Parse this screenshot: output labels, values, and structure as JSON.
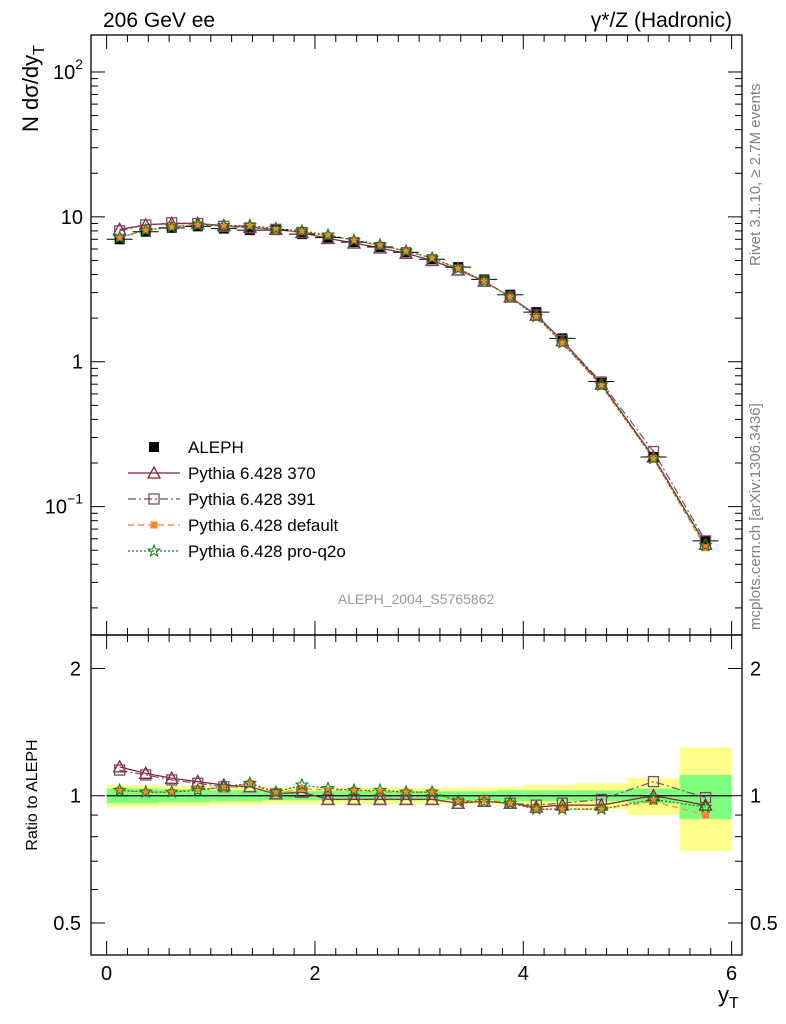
{
  "header": {
    "left_title": "206 GeV ee",
    "right_title": "γ*/Z (Hadronic)"
  },
  "side_labels": {
    "rivet": "Rivet 3.1.10, ≥ 2.7M events",
    "mcplots": "mcplots.cern.ch [arXiv:1306.3436]"
  },
  "watermark": "ALEPH_2004_S5765862",
  "colors": {
    "data": "#000000",
    "p370": "#8b1a2e",
    "p391": "#7a4a6a",
    "pdefault": "#ff8533",
    "pq2o": "#1a7a1a",
    "band_inner": "#7fff7f",
    "band_outer": "#ffff8a"
  },
  "chart_data": [
    {
      "type": "scatter",
      "panel": "main",
      "ylabel": "N dσ/dy",
      "ylabel_sub": "T",
      "yscale": "log",
      "ylim": [
        0.013,
        180
      ],
      "xlim": [
        -0.15,
        6.1
      ],
      "yticks": [
        {
          "value": 0.1,
          "base": "10",
          "exp": "−1"
        },
        {
          "value": 1,
          "base": "1",
          "exp": ""
        },
        {
          "value": 10,
          "base": "10",
          "exp": ""
        },
        {
          "value": 100,
          "base": "10",
          "exp": "2"
        }
      ],
      "legend_position": "left, middle",
      "x": [
        0.125,
        0.375,
        0.625,
        0.875,
        1.125,
        1.375,
        1.625,
        1.875,
        2.125,
        2.375,
        2.625,
        2.875,
        3.125,
        3.375,
        3.625,
        3.875,
        4.125,
        4.375,
        4.75,
        5.25,
        5.75
      ],
      "series": [
        {
          "name": "ALEPH",
          "key": "data",
          "values": [
            7.0,
            7.9,
            8.4,
            8.6,
            8.3,
            8.1,
            8.1,
            7.6,
            7.2,
            6.7,
            6.2,
            5.7,
            5.1,
            4.5,
            3.7,
            2.9,
            2.2,
            1.45,
            0.73,
            0.22,
            0.058
          ]
        },
        {
          "name": "Pythia 6.428 370",
          "key": "p370",
          "values": [
            8.2,
            8.8,
            9.0,
            9.0,
            8.7,
            8.5,
            8.2,
            7.8,
            7.1,
            6.6,
            6.1,
            5.6,
            5.0,
            4.3,
            3.6,
            2.8,
            2.1,
            1.4,
            0.7,
            0.22,
            0.055
          ]
        },
        {
          "name": "Pythia 6.428 391",
          "key": "p391",
          "values": [
            8.0,
            8.8,
            9.1,
            9.0,
            8.6,
            8.4,
            8.2,
            7.8,
            7.1,
            6.6,
            6.1,
            5.6,
            5.0,
            4.3,
            3.6,
            2.8,
            2.1,
            1.4,
            0.72,
            0.24,
            0.058
          ]
        },
        {
          "name": "Pythia 6.428 default",
          "key": "pdefault",
          "values": [
            7.2,
            8.1,
            8.6,
            8.9,
            8.6,
            8.7,
            8.1,
            7.9,
            7.4,
            6.9,
            6.3,
            5.8,
            5.2,
            4.4,
            3.6,
            2.8,
            2.05,
            1.35,
            0.68,
            0.215,
            0.052
          ]
        },
        {
          "name": "Pythia 6.428 pro-q2o",
          "key": "pq2o",
          "values": [
            7.2,
            8.1,
            8.5,
            8.8,
            8.7,
            8.7,
            8.3,
            8.0,
            7.5,
            6.9,
            6.4,
            5.8,
            5.2,
            4.4,
            3.6,
            2.8,
            2.05,
            1.35,
            0.69,
            0.215,
            0.054
          ]
        }
      ]
    },
    {
      "type": "line",
      "panel": "ratio",
      "ylabel": "Ratio to ALEPH",
      "xlabel": "y",
      "xlabel_sub": "T",
      "yscale": "log",
      "ylim": [
        0.42,
        2.4
      ],
      "xlim": [
        -0.15,
        6.1
      ],
      "xticks": [
        0,
        2,
        4,
        6
      ],
      "yticks": [
        0.5,
        1,
        2
      ],
      "x_edges": [
        0,
        0.25,
        0.5,
        0.75,
        1.0,
        1.25,
        1.5,
        1.75,
        2.0,
        2.25,
        2.5,
        2.75,
        3.0,
        3.25,
        3.5,
        3.75,
        4.0,
        4.25,
        4.5,
        5.0,
        5.5,
        6.0
      ],
      "band_inner": [
        [
          0.96,
          1.04
        ],
        [
          0.96,
          1.04
        ],
        [
          0.965,
          1.035
        ],
        [
          0.965,
          1.035
        ],
        [
          0.97,
          1.03
        ],
        [
          0.97,
          1.03
        ],
        [
          0.975,
          1.025
        ],
        [
          0.975,
          1.025
        ],
        [
          0.975,
          1.025
        ],
        [
          0.975,
          1.025
        ],
        [
          0.975,
          1.025
        ],
        [
          0.975,
          1.025
        ],
        [
          0.975,
          1.025
        ],
        [
          0.975,
          1.025
        ],
        [
          0.975,
          1.025
        ],
        [
          0.97,
          1.03
        ],
        [
          0.97,
          1.03
        ],
        [
          0.97,
          1.03
        ],
        [
          0.97,
          1.03
        ],
        [
          0.96,
          1.04
        ],
        [
          0.88,
          1.12
        ]
      ],
      "band_outer": [
        [
          0.94,
          1.06
        ],
        [
          0.94,
          1.06
        ],
        [
          0.945,
          1.055
        ],
        [
          0.945,
          1.055
        ],
        [
          0.95,
          1.05
        ],
        [
          0.95,
          1.05
        ],
        [
          0.955,
          1.045
        ],
        [
          0.955,
          1.045
        ],
        [
          0.955,
          1.045
        ],
        [
          0.955,
          1.045
        ],
        [
          0.955,
          1.045
        ],
        [
          0.955,
          1.045
        ],
        [
          0.955,
          1.045
        ],
        [
          0.955,
          1.045
        ],
        [
          0.955,
          1.045
        ],
        [
          0.95,
          1.05
        ],
        [
          0.94,
          1.06
        ],
        [
          0.94,
          1.06
        ],
        [
          0.93,
          1.07
        ],
        [
          0.9,
          1.1
        ],
        [
          0.74,
          1.3
        ]
      ],
      "x": [
        0.125,
        0.375,
        0.625,
        0.875,
        1.125,
        1.375,
        1.625,
        1.875,
        2.125,
        2.375,
        2.625,
        2.875,
        3.125,
        3.375,
        3.625,
        3.875,
        4.125,
        4.375,
        4.75,
        5.25,
        5.75
      ],
      "series": [
        {
          "name": "Pythia 6.428 370",
          "key": "p370",
          "values": [
            1.17,
            1.13,
            1.1,
            1.08,
            1.06,
            1.05,
            1.01,
            1.02,
            0.98,
            0.98,
            0.98,
            0.98,
            0.98,
            0.96,
            0.97,
            0.96,
            0.94,
            0.95,
            0.95,
            1.0,
            0.95
          ]
        },
        {
          "name": "Pythia 6.428 391",
          "key": "p391",
          "values": [
            1.15,
            1.12,
            1.09,
            1.07,
            1.05,
            1.05,
            1.01,
            1.02,
            0.98,
            0.98,
            0.98,
            0.98,
            0.98,
            0.96,
            0.97,
            0.96,
            0.95,
            0.96,
            0.98,
            1.08,
            0.99
          ]
        },
        {
          "name": "Pythia 6.428 default",
          "key": "pdefault",
          "values": [
            1.03,
            1.02,
            1.02,
            1.04,
            1.04,
            1.07,
            1.01,
            1.04,
            1.03,
            1.03,
            1.02,
            1.02,
            1.02,
            0.97,
            0.98,
            0.96,
            0.93,
            0.93,
            0.93,
            0.97,
            0.9
          ]
        },
        {
          "name": "Pythia 6.428 pro-q2o",
          "key": "pq2o",
          "values": [
            1.03,
            1.02,
            1.02,
            1.03,
            1.05,
            1.07,
            1.02,
            1.06,
            1.04,
            1.03,
            1.03,
            1.02,
            1.02,
            0.97,
            0.97,
            0.96,
            0.93,
            0.93,
            0.93,
            0.98,
            0.94
          ]
        }
      ]
    }
  ]
}
